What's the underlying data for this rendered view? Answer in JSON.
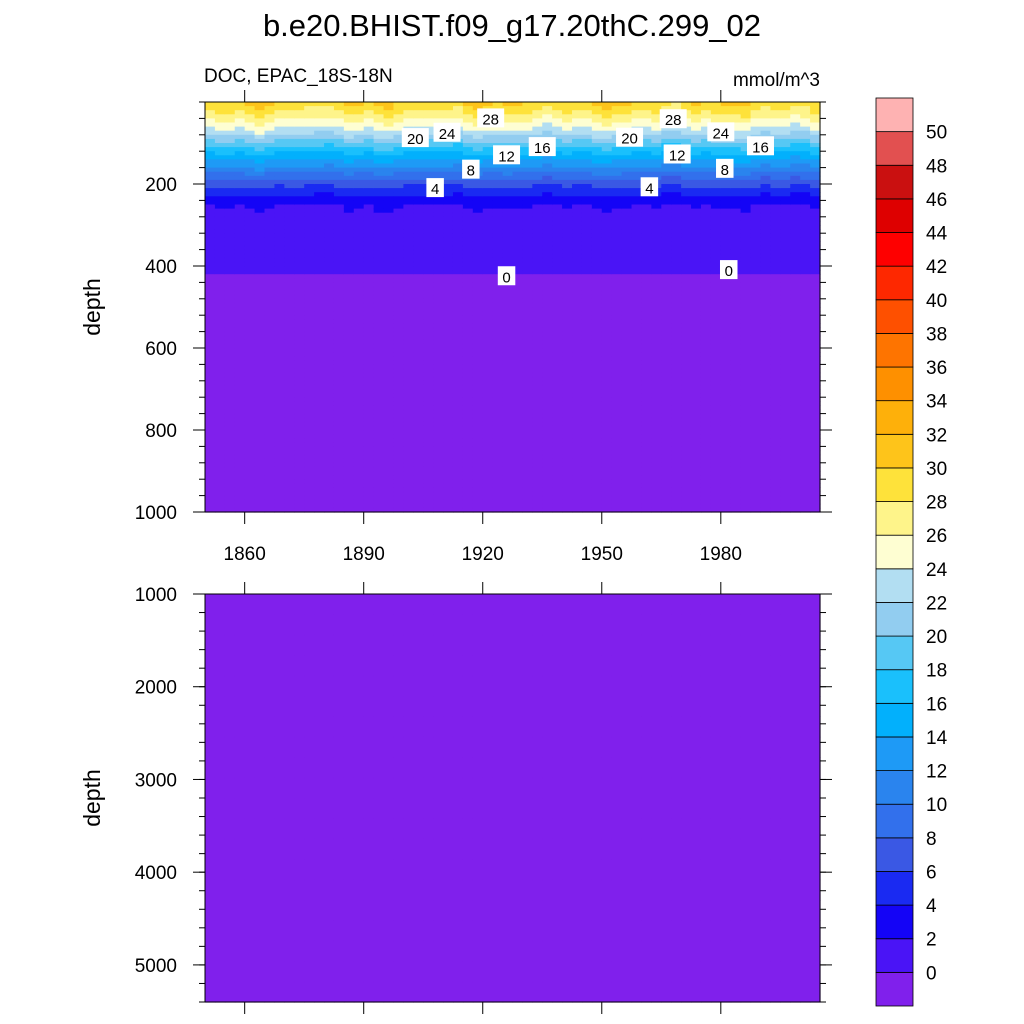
{
  "chart_data": {
    "type": "heatmap",
    "title": "b.e20.BHIST.f09_g17.20thC.299_02",
    "variable_label": "DOC, EPAC_18S-18N",
    "units_label": "mmol/m^3",
    "x": {
      "ticks": [
        1860,
        1890,
        1920,
        1950,
        1980
      ],
      "range": [
        1850,
        2005
      ]
    },
    "panels": [
      {
        "name": "upper",
        "ylabel": "depth",
        "ylim": [
          0,
          1000
        ],
        "yticks": [
          200,
          400,
          600,
          800,
          1000
        ],
        "contour_labels": [
          {
            "text": "28",
            "x": 1922,
            "y": 40
          },
          {
            "text": "24",
            "x": 1911,
            "y": 75
          },
          {
            "text": "20",
            "x": 1903,
            "y": 88
          },
          {
            "text": "12",
            "x": 1926,
            "y": 130
          },
          {
            "text": "16",
            "x": 1935,
            "y": 110
          },
          {
            "text": "8",
            "x": 1917,
            "y": 165
          },
          {
            "text": "4",
            "x": 1908,
            "y": 210
          },
          {
            "text": "0",
            "x": 1926,
            "y": 425
          },
          {
            "text": "28",
            "x": 1968,
            "y": 42
          },
          {
            "text": "24",
            "x": 1980,
            "y": 74
          },
          {
            "text": "20",
            "x": 1957,
            "y": 87
          },
          {
            "text": "16",
            "x": 1990,
            "y": 108
          },
          {
            "text": "12",
            "x": 1969,
            "y": 128
          },
          {
            "text": "8",
            "x": 1981,
            "y": 163
          },
          {
            "text": "4",
            "x": 1962,
            "y": 208
          },
          {
            "text": "0",
            "x": 1982,
            "y": 410
          }
        ]
      },
      {
        "name": "lower",
        "ylabel": "depth",
        "ylim": [
          1000,
          5400
        ],
        "yticks": [
          1000,
          2000,
          3000,
          4000,
          5000
        ]
      }
    ],
    "profile": {
      "depth": [
        0,
        25,
        45,
        65,
        80,
        95,
        110,
        125,
        140,
        160,
        180,
        215,
        255,
        420,
        1000,
        5400
      ],
      "value": [
        30,
        28,
        26,
        24,
        22,
        20,
        18,
        16,
        14,
        12,
        9,
        5,
        2,
        0,
        -1,
        -1
      ]
    },
    "colorbar": {
      "levels": [
        0,
        2,
        4,
        6,
        8,
        10,
        12,
        14,
        16,
        18,
        20,
        22,
        24,
        26,
        28,
        30,
        32,
        34,
        36,
        38,
        40,
        42,
        44,
        46,
        48,
        50
      ],
      "labels": [
        "0",
        "2",
        "4",
        "6",
        "8",
        "10",
        "12",
        "14",
        "16",
        "18",
        "20",
        "22",
        "24",
        "26",
        "28",
        "30",
        "32",
        "34",
        "36",
        "38",
        "40",
        "42",
        "44",
        "46",
        "48",
        "50"
      ],
      "colors": [
        "#8020ec",
        "#4a14f6",
        "#1404f6",
        "#1a2af2",
        "#3a58e4",
        "#3270ec",
        "#2a84ee",
        "#1e9af6",
        "#02b0fc",
        "#1ac0fc",
        "#56c8f4",
        "#92cdf0",
        "#b2def2",
        "#fefed2",
        "#fef48a",
        "#fee23a",
        "#fec41a",
        "#feb00a",
        "#fe9000",
        "#fe7400",
        "#fe5000",
        "#fe2800",
        "#fe0000",
        "#de0000",
        "#ca1010",
        "#e25050",
        "#feb2b2"
      ]
    }
  }
}
